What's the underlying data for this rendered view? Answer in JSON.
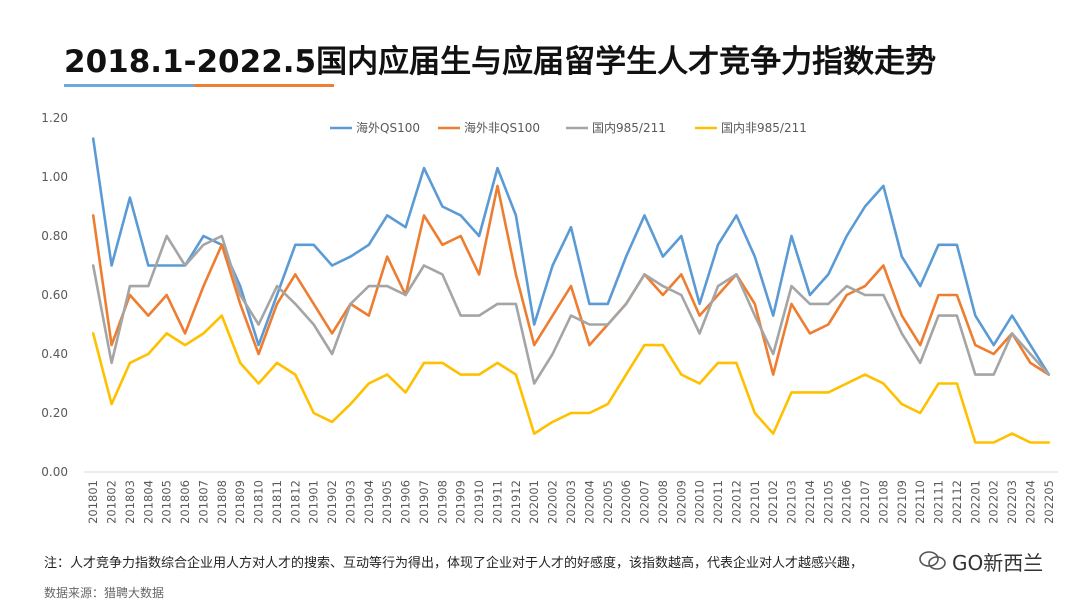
{
  "title": "2018.1-2022.5国内应届生与应届留学生人才竞争力指数走势",
  "note": "注：人才竞争力指数综合企业用人方对人才的搜索、互动等行为得出，体现了企业对于人才的好感度，该指数越高，代表企业对人才越感兴趣，",
  "source": "数据来源：猎聘大数据",
  "watermark": "GO新西兰",
  "colors": {
    "blue": "#5b9bd5",
    "orange": "#ed7d31",
    "gray": "#a5a5a5",
    "yellow": "#ffc000"
  },
  "chart_data": {
    "type": "line",
    "ylim": [
      0,
      1.2
    ],
    "yticks": [
      "0.00",
      "0.20",
      "0.40",
      "0.60",
      "0.80",
      "1.00",
      "1.20"
    ],
    "grid": false,
    "legend": "top",
    "categories": [
      "201801",
      "201802",
      "201803",
      "201804",
      "201805",
      "201806",
      "201807",
      "201808",
      "201809",
      "201810",
      "201811",
      "201812",
      "201901",
      "201902",
      "201903",
      "201904",
      "201905",
      "201906",
      "201907",
      "201908",
      "201909",
      "201910",
      "201911",
      "201912",
      "202001",
      "202002",
      "202003",
      "202004",
      "202005",
      "202006",
      "202007",
      "202008",
      "202009",
      "202010",
      "202011",
      "202012",
      "202101",
      "202102",
      "202103",
      "202104",
      "202105",
      "202106",
      "202107",
      "202108",
      "202109",
      "202110",
      "202111",
      "202112",
      "202201",
      "202202",
      "202203",
      "202204",
      "202205"
    ],
    "series": [
      {
        "name": "海外QS100",
        "color": "#5b9bd5",
        "values": [
          1.13,
          0.7,
          0.93,
          0.7,
          0.7,
          0.7,
          0.8,
          0.77,
          0.63,
          0.43,
          0.6,
          0.77,
          0.77,
          0.7,
          0.73,
          0.77,
          0.87,
          0.83,
          1.03,
          0.9,
          0.87,
          0.8,
          1.03,
          0.87,
          0.5,
          0.7,
          0.83,
          0.57,
          0.57,
          0.73,
          0.87,
          0.73,
          0.8,
          0.57,
          0.77,
          0.87,
          0.73,
          0.53,
          0.8,
          0.6,
          0.67,
          0.8,
          0.9,
          0.97,
          0.73,
          0.63,
          0.77,
          0.77,
          0.53,
          0.43,
          0.53,
          0.43,
          0.33
        ]
      },
      {
        "name": "海外非QS100",
        "color": "#ed7d31",
        "values": [
          0.87,
          0.43,
          0.6,
          0.53,
          0.6,
          0.47,
          0.63,
          0.77,
          0.57,
          0.4,
          0.57,
          0.67,
          0.57,
          0.47,
          0.57,
          0.53,
          0.73,
          0.6,
          0.87,
          0.77,
          0.8,
          0.67,
          0.97,
          0.67,
          0.43,
          0.53,
          0.63,
          0.43,
          0.5,
          0.57,
          0.67,
          0.6,
          0.67,
          0.53,
          0.6,
          0.67,
          0.57,
          0.33,
          0.57,
          0.47,
          0.5,
          0.6,
          0.63,
          0.7,
          0.53,
          0.43,
          0.6,
          0.6,
          0.43,
          0.4,
          0.47,
          0.37,
          0.33
        ]
      },
      {
        "name": "国内985/211",
        "color": "#a5a5a5",
        "values": [
          0.7,
          0.37,
          0.63,
          0.63,
          0.8,
          0.7,
          0.77,
          0.8,
          0.6,
          0.5,
          0.63,
          0.57,
          0.5,
          0.4,
          0.57,
          0.63,
          0.63,
          0.6,
          0.7,
          0.67,
          0.53,
          0.53,
          0.57,
          0.57,
          0.3,
          0.4,
          0.53,
          0.5,
          0.5,
          0.57,
          0.67,
          0.63,
          0.6,
          0.47,
          0.63,
          0.67,
          0.53,
          0.4,
          0.63,
          0.57,
          0.57,
          0.63,
          0.6,
          0.6,
          0.47,
          0.37,
          0.53,
          0.53,
          0.33,
          0.33,
          0.47,
          0.4,
          0.33
        ]
      },
      {
        "name": "国内非985/211",
        "color": "#ffc000",
        "values": [
          0.47,
          0.23,
          0.37,
          0.4,
          0.47,
          0.43,
          0.47,
          0.53,
          0.37,
          0.3,
          0.37,
          0.33,
          0.2,
          0.17,
          0.23,
          0.3,
          0.33,
          0.27,
          0.37,
          0.37,
          0.33,
          0.33,
          0.37,
          0.33,
          0.13,
          0.17,
          0.2,
          0.2,
          0.23,
          0.33,
          0.43,
          0.43,
          0.33,
          0.3,
          0.37,
          0.37,
          0.2,
          0.13,
          0.27,
          0.27,
          0.27,
          0.3,
          0.33,
          0.3,
          0.23,
          0.2,
          0.3,
          0.3,
          0.1,
          0.1,
          0.13,
          0.1,
          0.1
        ]
      }
    ]
  }
}
